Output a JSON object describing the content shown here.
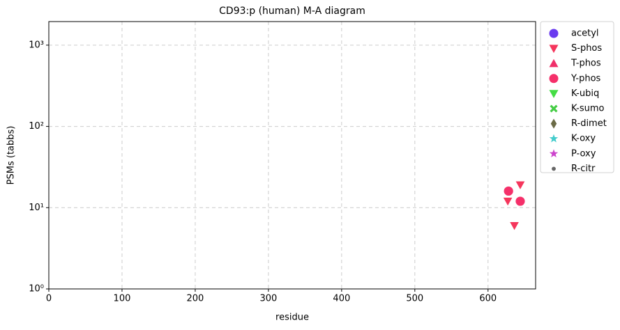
{
  "chart_data": {
    "type": "scatter",
    "title": "CD93:p (human) M-A diagram",
    "xlabel": "residue",
    "ylabel": "PSMs (tabbs)",
    "xlim": [
      0,
      665
    ],
    "xticks": [
      0,
      100,
      200,
      300,
      400,
      500,
      600
    ],
    "ylim": [
      1,
      1950
    ],
    "ylog": true,
    "yticks": [
      {
        "value": 1,
        "label": "10⁰"
      },
      {
        "value": 10,
        "label": "10¹"
      },
      {
        "value": 100,
        "label": "10²"
      },
      {
        "value": 1000,
        "label": "10³"
      }
    ],
    "grid": true,
    "legend": "outside-upper-right",
    "series": [
      {
        "name": "acetyl",
        "color": "#6a3bef",
        "marker": "circle",
        "x": [],
        "values": []
      },
      {
        "name": "S-phos",
        "color": "#f5365c",
        "marker": "triangle-down",
        "x": [
          627,
          644,
          636
        ],
        "values": [
          12,
          19,
          6
        ]
      },
      {
        "name": "T-phos",
        "color": "#f0306a",
        "marker": "triangle-up",
        "x": [],
        "values": []
      },
      {
        "name": "Y-phos",
        "color": "#f5306a",
        "marker": "circle",
        "x": [
          628,
          644
        ],
        "values": [
          16,
          12
        ]
      },
      {
        "name": "K-ubiq",
        "color": "#44dd44",
        "marker": "triangle-down",
        "x": [],
        "values": []
      },
      {
        "name": "K-sumo",
        "color": "#44cc44",
        "marker": "x",
        "x": [],
        "values": []
      },
      {
        "name": "R-dimet",
        "color": "#6b6b47",
        "marker": "diamond",
        "x": [],
        "values": []
      },
      {
        "name": "K-oxy",
        "color": "#44cccc",
        "marker": "star",
        "x": [],
        "values": []
      },
      {
        "name": "P-oxy",
        "color": "#cc44cc",
        "marker": "star",
        "x": [],
        "values": []
      },
      {
        "name": "R-citr",
        "color": "#666666",
        "marker": "dot",
        "x": [],
        "values": []
      }
    ]
  }
}
